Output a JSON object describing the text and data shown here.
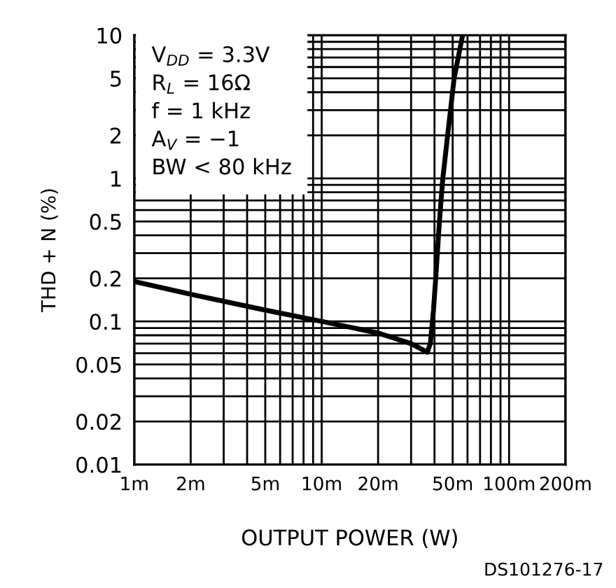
{
  "chart_data": {
    "type": "line",
    "xlabel": "OUTPUT POWER (W)",
    "ylabel": "THD + N (%)",
    "annotations": [
      "V$_{DD}$ = 3.3V",
      "R$_{L}$ = 16Ω",
      "f = 1 kHz",
      "A$_{V}$ = −1",
      "BW < 80 kHz",
      "DS101276-17"
    ],
    "x": [
      1,
      2,
      5,
      10,
      20,
      30,
      36.6,
      38,
      39.5,
      40.6,
      42.5,
      44.3,
      47,
      50.9,
      56.5
    ],
    "series": [
      {
        "color": "#000000",
        "values": [
          0.19,
          0.155,
          0.12,
          0.1,
          0.083,
          0.07,
          0.061,
          0.07,
          0.12,
          0.2,
          0.5,
          1,
          2,
          5,
          10
        ]
      }
    ],
    "log": "xy",
    "grid": true,
    "line_style": "solid",
    "marker": "none",
    "xlim": [
      1,
      200
    ],
    "ylim": [
      0.01,
      10
    ],
    "xticks": [
      {
        "value": 1,
        "label": "1m"
      },
      {
        "value": 2,
        "label": "2m"
      },
      {
        "value": 5,
        "label": "5m"
      },
      {
        "value": 10,
        "label": "10m"
      },
      {
        "value": 20,
        "label": "20m"
      },
      {
        "value": 50,
        "label": "50m"
      },
      {
        "value": 100,
        "label": "100m"
      },
      {
        "value": 200,
        "label": "200m"
      }
    ],
    "yticks": [
      0.01,
      0.02,
      0.05,
      0.1,
      0.2,
      0.5,
      1,
      2,
      5,
      10
    ]
  }
}
